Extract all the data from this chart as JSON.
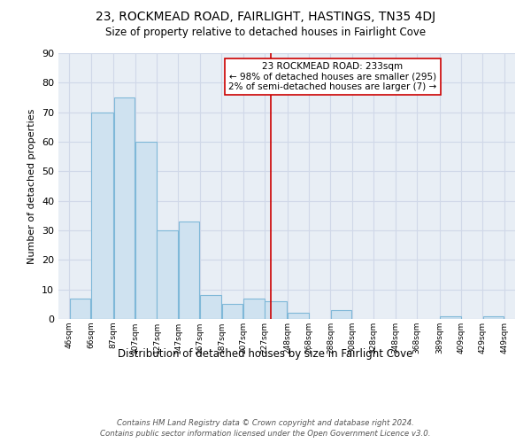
{
  "title1": "23, ROCKMEAD ROAD, FAIRLIGHT, HASTINGS, TN35 4DJ",
  "title2": "Size of property relative to detached houses in Fairlight Cove",
  "xlabel": "Distribution of detached houses by size in Fairlight Cove",
  "ylabel": "Number of detached properties",
  "bar_left_edges": [
    46,
    66,
    87,
    107,
    127,
    147,
    167,
    187,
    207,
    227,
    248,
    268,
    288,
    308,
    328,
    348,
    368,
    389,
    409,
    429
  ],
  "bar_widths": [
    20,
    21,
    20,
    20,
    20,
    20,
    20,
    20,
    20,
    21,
    20,
    20,
    20,
    20,
    20,
    20,
    21,
    20,
    20,
    20
  ],
  "bar_heights": [
    7,
    70,
    75,
    60,
    30,
    33,
    8,
    5,
    7,
    6,
    2,
    0,
    3,
    0,
    0,
    0,
    0,
    1,
    0,
    1
  ],
  "bar_color": "#cfe2f0",
  "bar_edge_color": "#7fb8d8",
  "vline_x": 233,
  "vline_color": "#cc0000",
  "annotation_text_line1": "23 ROCKMEAD ROAD: 233sqm",
  "annotation_text_line2": "← 98% of detached houses are smaller (295)",
  "annotation_text_line3": "2% of semi-detached houses are larger (7) →",
  "xtick_labels": [
    "46sqm",
    "66sqm",
    "87sqm",
    "107sqm",
    "127sqm",
    "147sqm",
    "167sqm",
    "187sqm",
    "207sqm",
    "227sqm",
    "248sqm",
    "268sqm",
    "288sqm",
    "308sqm",
    "328sqm",
    "348sqm",
    "368sqm",
    "389sqm",
    "409sqm",
    "429sqm",
    "449sqm"
  ],
  "xtick_positions": [
    46,
    66,
    87,
    107,
    127,
    147,
    167,
    187,
    207,
    227,
    248,
    268,
    288,
    308,
    328,
    348,
    368,
    389,
    409,
    429,
    449
  ],
  "ylim": [
    0,
    90
  ],
  "xlim": [
    36,
    459
  ],
  "grid_color": "#d0d8e8",
  "bg_color": "#e8eef5",
  "footnote1": "Contains HM Land Registry data © Crown copyright and database right 2024.",
  "footnote2": "Contains public sector information licensed under the Open Government Licence v3.0."
}
